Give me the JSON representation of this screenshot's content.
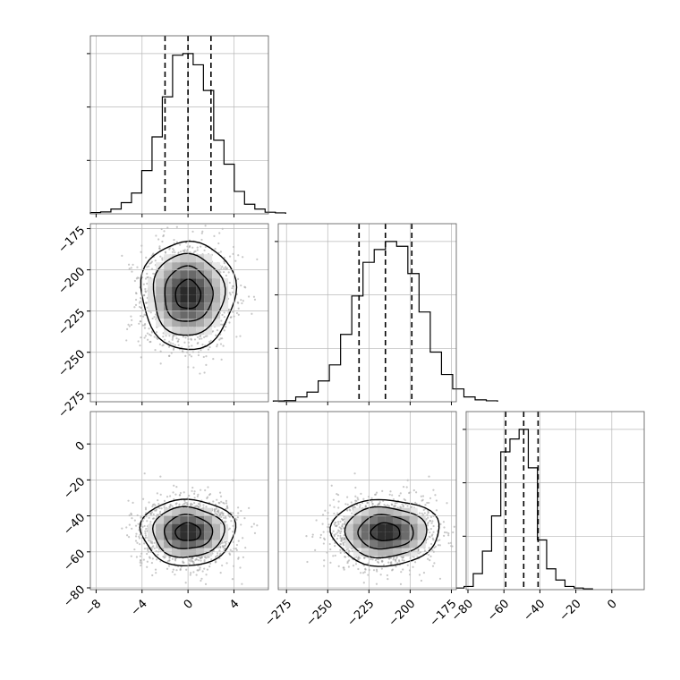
{
  "chart_data": {
    "type": "corner",
    "grid": true,
    "quantiles": [
      0.16,
      0.5,
      0.84
    ],
    "params": [
      {
        "mean": 0,
        "sd": 2,
        "range": [
          -8.5,
          7
        ],
        "ticks": [
          {
            "v": -8,
            "label": "−8"
          },
          {
            "v": -4,
            "label": "−4"
          },
          {
            "v": 0,
            "label": "0"
          },
          {
            "v": 4,
            "label": "4"
          }
        ],
        "quantile_values": [
          -2,
          0,
          2
        ],
        "hist_values": [
          0.008,
          0.012,
          0.03,
          0.07,
          0.13,
          0.27,
          0.48,
          0.73,
          0.99,
          1.0,
          0.93,
          0.77,
          0.46,
          0.31,
          0.14,
          0.06,
          0.03,
          0.01,
          0.006
        ]
      },
      {
        "mean": -215,
        "sd": 16,
        "range": [
          -280,
          -172
        ],
        "ticks": [
          {
            "v": -275,
            "label": "−275"
          },
          {
            "v": -250,
            "label": "−250"
          },
          {
            "v": -225,
            "label": "−225"
          },
          {
            "v": -200,
            "label": "−200"
          },
          {
            "v": -175,
            "label": "−175"
          }
        ],
        "quantile_values": [
          -231,
          -215,
          -199
        ],
        "hist_values": [
          0.005,
          0.007,
          0.03,
          0.06,
          0.13,
          0.23,
          0.42,
          0.66,
          0.87,
          0.95,
          1.0,
          0.97,
          0.8,
          0.56,
          0.31,
          0.17,
          0.08,
          0.03,
          0.012,
          0.006
        ]
      },
      {
        "mean": -49,
        "sd": 9,
        "range": [
          -81,
          18
        ],
        "ticks": [
          {
            "v": -80,
            "label": "−80"
          },
          {
            "v": -60,
            "label": "−60"
          },
          {
            "v": -40,
            "label": "−40"
          },
          {
            "v": -20,
            "label": "−20"
          },
          {
            "v": 0,
            "label": "0"
          }
        ],
        "quantile_values": [
          -59,
          -49,
          -41
        ],
        "hist_values": [
          0.01,
          0.02,
          0.1,
          0.24,
          0.46,
          0.86,
          0.94,
          1.0,
          0.76,
          0.31,
          0.13,
          0.06,
          0.02,
          0.01,
          0.005
        ]
      }
    ],
    "samples_drawn": 1600
  }
}
